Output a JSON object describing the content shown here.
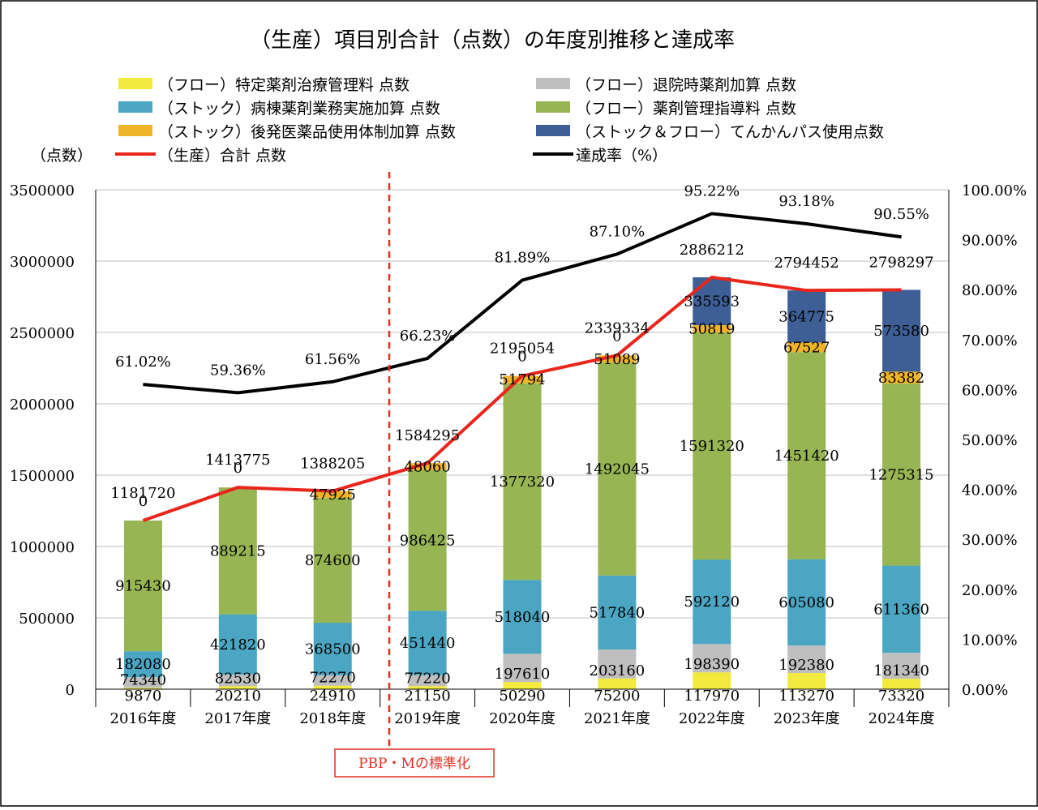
{
  "chart_data": {
    "type": "bar",
    "title": "（生産）項目別合計（点数）の年度別推移と達成率",
    "ylabel_left": "（点数）",
    "categories": [
      "2016年度",
      "2017年度",
      "2018年度",
      "2019年度",
      "2020年度",
      "2021年度",
      "2022年度",
      "2023年度",
      "2024年度"
    ],
    "ylim_left": [
      0,
      3500000
    ],
    "yticks_left": [
      "0",
      "500000",
      "1000000",
      "1500000",
      "2000000",
      "2500000",
      "3000000",
      "3500000"
    ],
    "ylim_right": [
      0,
      100
    ],
    "yticks_right": [
      "0.00%",
      "10.00%",
      "20.00%",
      "30.00%",
      "40.00%",
      "50.00%",
      "60.00%",
      "70.00%",
      "80.00%",
      "90.00%",
      "100.00%"
    ],
    "stacked": true,
    "legend_placement": "top",
    "series": [
      {
        "name": "（フロー）特定薬剤治療管理料 点数",
        "color": "#f2ea3c",
        "values": [
          9870,
          20210,
          24910,
          21150,
          50290,
          75200,
          117970,
          113270,
          73320
        ],
        "labels": [
          "9870",
          "20210",
          "24910",
          "21150",
          "50290",
          "75200",
          "117970",
          "113270",
          "73320"
        ]
      },
      {
        "name": "（フロー）退院時薬剤加算 点数",
        "color": "#bfbfbf",
        "values": [
          74340,
          82530,
          72270,
          77220,
          197610,
          203160,
          198390,
          192380,
          181340
        ],
        "labels": [
          "74340",
          "82530",
          "72270",
          "77220",
          "197610",
          "203160",
          "198390",
          "192380",
          "181340"
        ]
      },
      {
        "name": "（ストック）病棟薬剤業務実施加算 点数",
        "color": "#4aa6c2",
        "values": [
          182080,
          421820,
          368500,
          451440,
          518040,
          517840,
          592120,
          605080,
          611360
        ],
        "labels": [
          "182080",
          "421820",
          "368500",
          "451440",
          "518040",
          "517840",
          "592120",
          "605080",
          "611360"
        ]
      },
      {
        "name": "（フロー）薬剤管理指導料 点数",
        "color": "#97b553",
        "values": [
          915430,
          889215,
          874600,
          986425,
          1377320,
          1492045,
          1591320,
          1451420,
          1275315
        ],
        "labels": [
          "915430",
          "889215",
          "874600",
          "986425",
          "1377320",
          "1492045",
          "1591320",
          "1451420",
          "1275315"
        ]
      },
      {
        "name": "（ストック）後発医薬品使用体制加算 点数",
        "color": "#f0b527",
        "values": [
          0,
          0,
          47925,
          48060,
          51794,
          51089,
          50819,
          67527,
          83382
        ],
        "labels": [
          "0",
          "0",
          "47925",
          "48060",
          "51794",
          "51089",
          "50819",
          "67527",
          "83382"
        ]
      },
      {
        "name": "（ストック＆フロー）てんかんパス使用点数",
        "color": "#3d5f95",
        "values": [
          0,
          0,
          0,
          0,
          0,
          0,
          335593,
          364775,
          573580
        ],
        "labels": [
          "",
          "",
          "",
          "",
          "0",
          "0",
          "335593",
          "364775",
          "573580"
        ]
      }
    ],
    "total_series": {
      "name": "（生産）合計 点数",
      "color": "#e8261c",
      "values": [
        1181720,
        1413775,
        1388205,
        1584295,
        2195054,
        2339334,
        2886212,
        2794452,
        2798297
      ],
      "labels": [
        "1181720",
        "1413775",
        "1388205",
        "1584295",
        "2195054",
        "2339334",
        "2886212",
        "2794452",
        "2798297"
      ]
    },
    "rate_series": {
      "name": "達成率（%）",
      "color": "#000000",
      "values": [
        61.02,
        59.36,
        61.56,
        66.23,
        81.89,
        87.1,
        95.22,
        93.18,
        90.55
      ],
      "labels": [
        "61.02%",
        "59.36%",
        "61.56%",
        "66.23%",
        "81.89%",
        "87.10%",
        "95.22%",
        "93.18%",
        "90.55%"
      ]
    },
    "annotation": {
      "text": "PBP・Mの標準化",
      "color": "#e03020"
    }
  }
}
